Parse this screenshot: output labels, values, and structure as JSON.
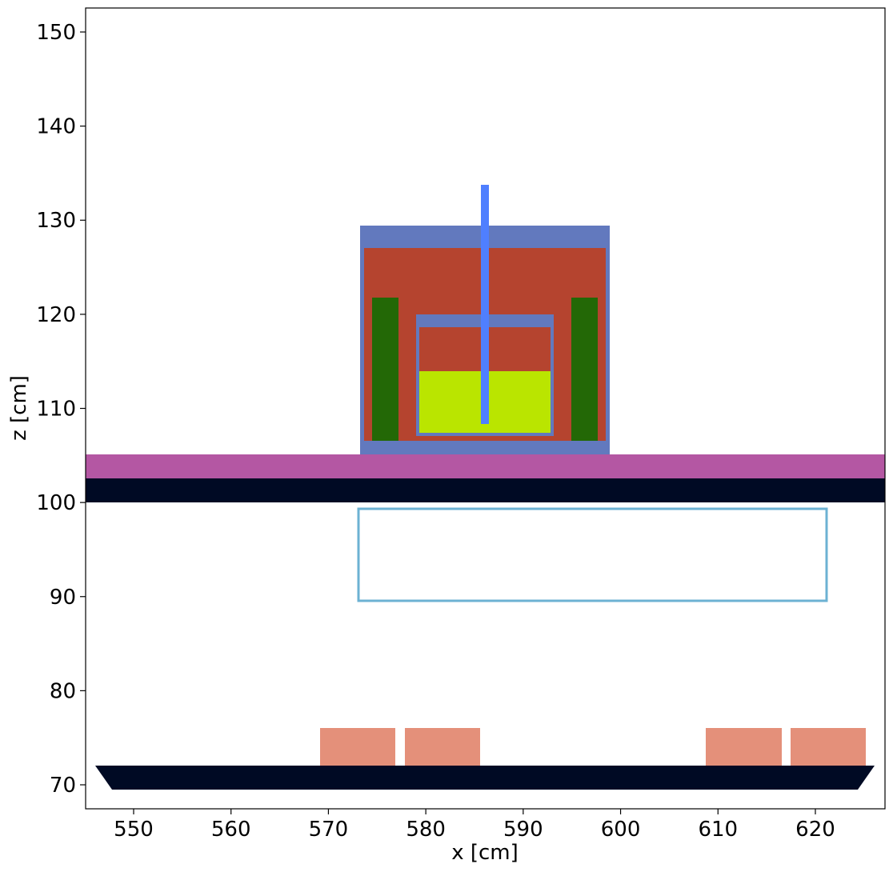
{
  "chart_data": {
    "type": "geometry",
    "xlabel": "x [cm]",
    "ylabel": "z [cm]",
    "xlim": [
      545.07,
      627.15
    ],
    "ylim": [
      67.45,
      152.55
    ],
    "xticks": [
      550,
      560,
      570,
      580,
      590,
      600,
      610,
      620
    ],
    "yticks": [
      70,
      80,
      90,
      100,
      110,
      120,
      130,
      140,
      150
    ]
  }
}
